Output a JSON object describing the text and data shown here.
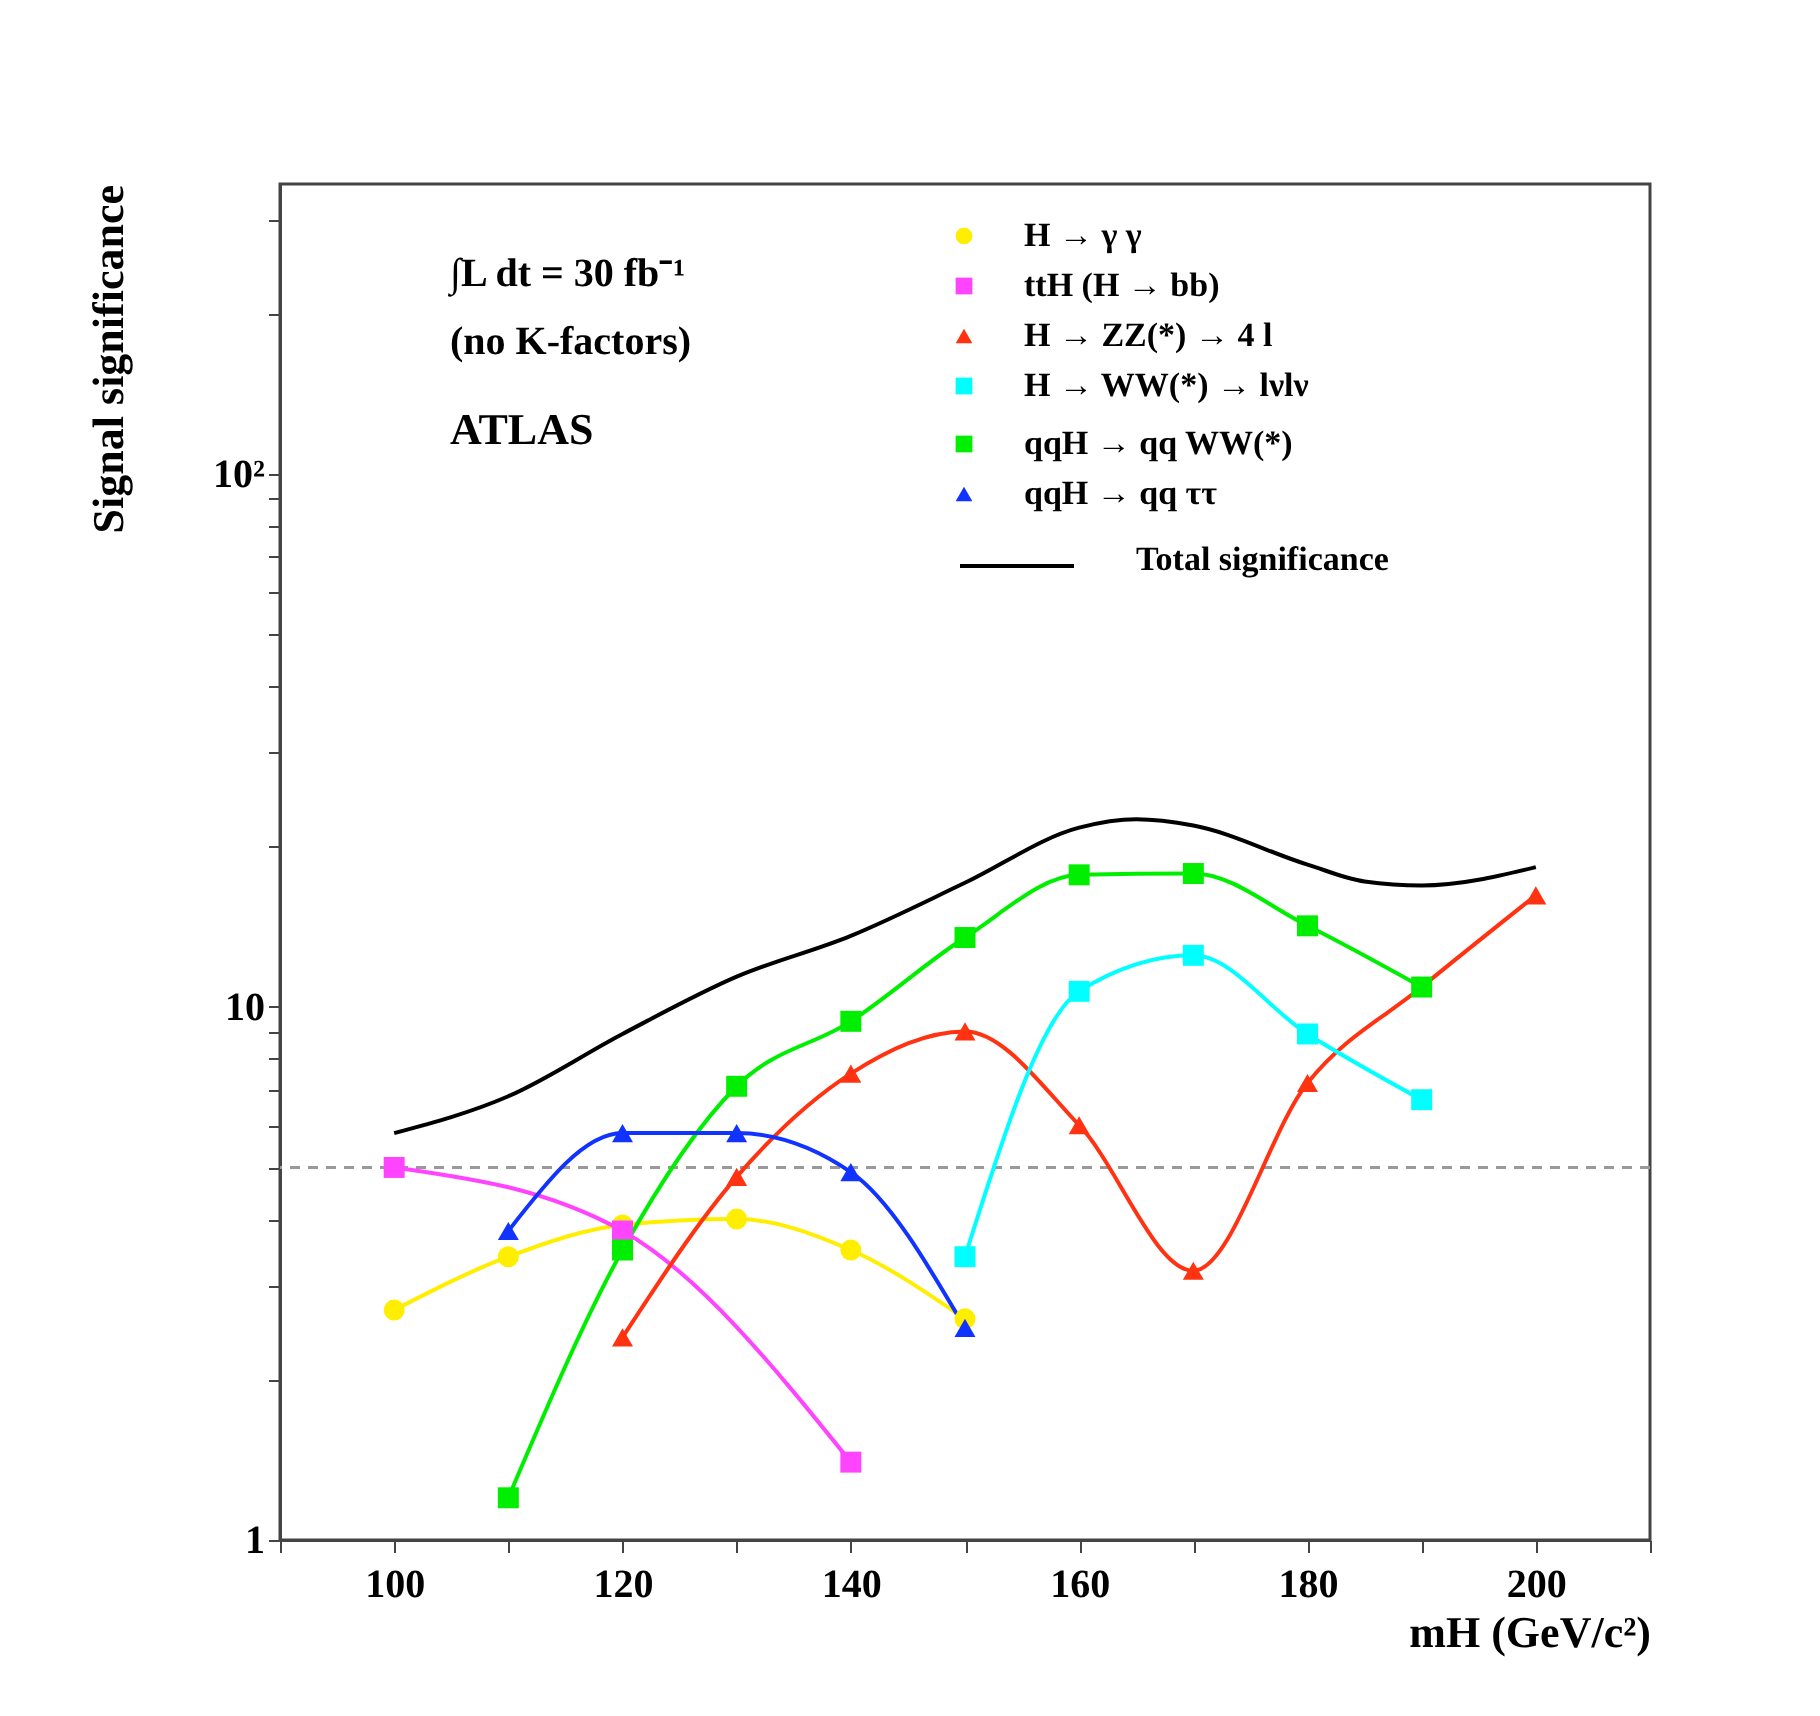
{
  "chart_data": {
    "type": "line",
    "xlabel": "mH (GeV/c²)",
    "ylabel": "Signal significance",
    "annotations": [
      "∫L dt = 30 fb⁻¹",
      "(no K-factors)",
      "ATLAS"
    ],
    "xlim": [
      90,
      210
    ],
    "ylim": [
      1,
      350
    ],
    "log": "y",
    "grid": false,
    "legend": "top right",
    "xticks": [
      {
        "value": 90,
        "label": null
      },
      100,
      {
        "value": 110,
        "label": null
      },
      120,
      {
        "value": 130,
        "label": null
      },
      140,
      {
        "value": 150,
        "label": null
      },
      160,
      {
        "value": 170,
        "label": null
      },
      180,
      {
        "value": 190,
        "label": null
      },
      200,
      {
        "value": 210,
        "label": null
      }
    ],
    "yticks": [
      1,
      {
        "value": 2,
        "label": null
      },
      {
        "value": 3,
        "label": null
      },
      {
        "value": 4,
        "label": null
      },
      {
        "value": 5,
        "label": null
      },
      {
        "value": 6,
        "label": null
      },
      {
        "value": 7,
        "label": null
      },
      {
        "value": 8,
        "label": null
      },
      {
        "value": 9,
        "label": null
      },
      10,
      {
        "value": 20,
        "label": null
      },
      {
        "value": 30,
        "label": null
      },
      {
        "value": 40,
        "label": null
      },
      {
        "value": 50,
        "label": null
      },
      {
        "value": 60,
        "label": null
      },
      {
        "value": 70,
        "label": null
      },
      {
        "value": 80,
        "label": null
      },
      {
        "value": 90,
        "label": null
      },
      {
        "value": 100,
        "label": "10²"
      },
      {
        "value": 200,
        "label": null
      },
      {
        "value": 300,
        "label": null
      }
    ],
    "ref_lines": [
      {
        "axis": "y",
        "value": 5,
        "label": null,
        "color": "#999999",
        "line_style": "dashed"
      }
    ],
    "series": [
      {
        "name": "H → γ γ",
        "color": "#ffee00",
        "marker": "circle",
        "x": [
          100,
          110,
          120,
          130,
          140,
          150
        ],
        "values": [
          2.7,
          3.4,
          3.9,
          4.0,
          3.5,
          2.6
        ]
      },
      {
        "name": "ttH (H → bb)",
        "color": "#ff44ff",
        "marker": "square",
        "x": [
          100,
          120,
          140
        ],
        "values": [
          5.0,
          3.8,
          1.4
        ]
      },
      {
        "name": "H → ZZ(*) → 4 l",
        "color": "#ff3311",
        "marker": "triangle",
        "x": [
          120,
          130,
          140,
          150,
          160,
          170,
          180,
          190,
          200
        ],
        "values": [
          2.4,
          4.8,
          7.5,
          9.0,
          6.0,
          3.2,
          7.2,
          10.9,
          16.2
        ]
      },
      {
        "name": "H → WW(*) → lνlν",
        "color": "#00ffff",
        "marker": "square",
        "x": [
          150,
          160,
          170,
          180,
          190
        ],
        "values": [
          3.4,
          10.7,
          12.5,
          8.9,
          6.7
        ]
      },
      {
        "name": "qqH → qq WW(*)",
        "color": "#00ee00",
        "marker": "square",
        "x": [
          110,
          120,
          130,
          140,
          150,
          160,
          170,
          180,
          190
        ],
        "values": [
          1.2,
          3.5,
          7.1,
          9.4,
          13.5,
          17.7,
          17.8,
          14.2,
          10.9
        ]
      },
      {
        "name": "qqH → qq ττ",
        "color": "#1133ff",
        "marker": "triangle",
        "x": [
          110,
          120,
          130,
          140,
          150
        ],
        "values": [
          3.8,
          5.8,
          5.8,
          4.9,
          2.5
        ]
      },
      {
        "name": "Total significance",
        "color": "#000000",
        "marker": "none",
        "x": [
          100,
          110,
          120,
          130,
          140,
          150,
          160,
          165,
          170,
          180,
          185,
          190,
          200
        ],
        "values": [
          5.8,
          6.8,
          8.9,
          11.4,
          13.6,
          17.1,
          21.7,
          22.5,
          21.9,
          18.5,
          17.2,
          16.9,
          18.3
        ]
      }
    ]
  }
}
